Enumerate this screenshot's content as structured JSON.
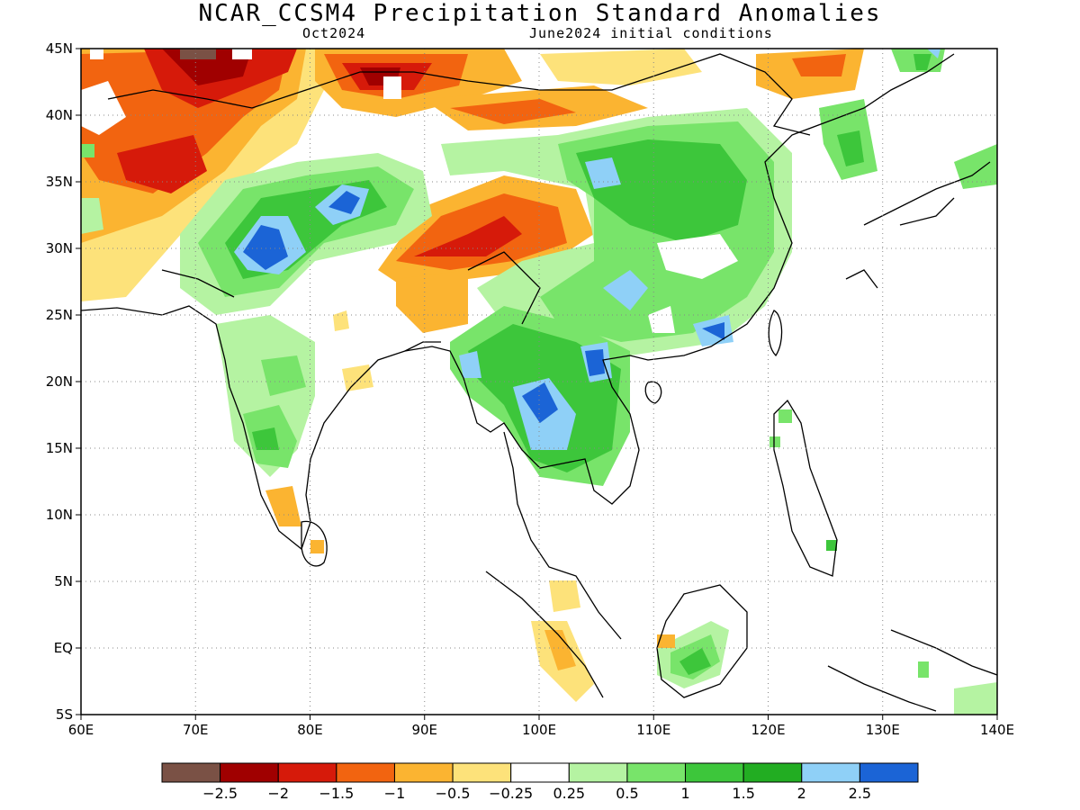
{
  "title": "NCAR_CCSM4 Precipitation Standard Anomalies",
  "subtitle_left": "Oct2024",
  "subtitle_right": "June2024 initial conditions",
  "axes": {
    "lon_ticks": [
      "60E",
      "70E",
      "80E",
      "90E",
      "100E",
      "110E",
      "120E",
      "130E",
      "140E"
    ],
    "lat_ticks": [
      "45N",
      "40N",
      "35N",
      "30N",
      "25N",
      "20N",
      "15N",
      "10N",
      "5N",
      "EQ",
      "5S"
    ],
    "lon_range": [
      60,
      140
    ],
    "lat_range": [
      -5,
      45
    ],
    "grid": true
  },
  "colorbar": {
    "labels": [
      "-2.5",
      "-2",
      "-1.5",
      "-1",
      "-0.5",
      "-0.25",
      "0.25",
      "0.5",
      "1",
      "1.5",
      "2",
      "2.5"
    ],
    "colors": [
      "#7a5145",
      "#a00000",
      "#d61a0a",
      "#f26410",
      "#fbb431",
      "#fde27a",
      "#ffffff",
      "#b5f3a2",
      "#78e46a",
      "#3dc63b",
      "#22ad22",
      "#8fd0f7",
      "#1b64d6"
    ]
  },
  "colors": {
    "dark_brown": "#7a5145",
    "dark_red": "#a00000",
    "red": "#d61a0a",
    "orange": "#f26410",
    "light_orange": "#fbb431",
    "yellow": "#fde27a",
    "light_green": "#b5f3a2",
    "green": "#78e46a",
    "mid_green": "#3dc63b",
    "dark_green": "#22ad22",
    "light_blue": "#8fd0f7",
    "blue": "#1b64d6"
  }
}
